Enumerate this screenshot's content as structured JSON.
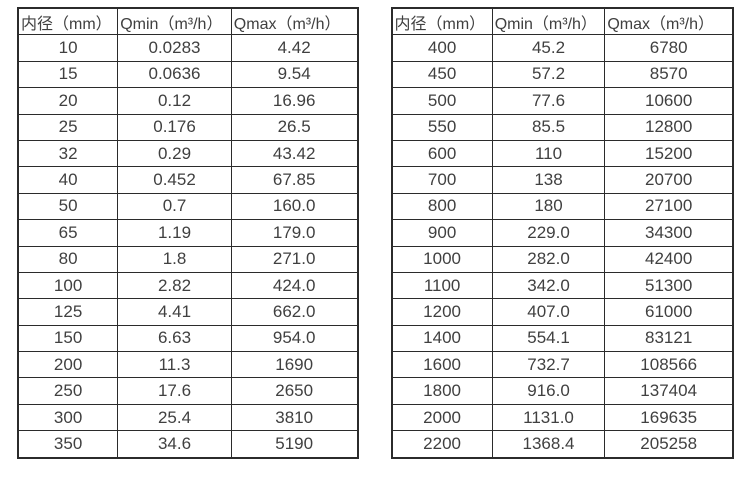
{
  "colors": {
    "background": "#ffffff",
    "text": "#404040",
    "border": "#2b2b2b"
  },
  "left_table": {
    "headers": [
      "内径（mm）",
      "Qmin（m³/h）",
      "Qmax（m³/h）"
    ],
    "rows": [
      [
        "10",
        "0.0283",
        "4.42"
      ],
      [
        "15",
        "0.0636",
        "9.54"
      ],
      [
        "20",
        "0.12",
        "16.96"
      ],
      [
        "25",
        "0.176",
        "26.5"
      ],
      [
        "32",
        "0.29",
        "43.42"
      ],
      [
        "40",
        "0.452",
        "67.85"
      ],
      [
        "50",
        "0.7",
        "160.0"
      ],
      [
        "65",
        "1.19",
        "179.0"
      ],
      [
        "80",
        "1.8",
        "271.0"
      ],
      [
        "100",
        "2.82",
        "424.0"
      ],
      [
        "125",
        "4.41",
        "662.0"
      ],
      [
        "150",
        "6.63",
        "954.0"
      ],
      [
        "200",
        "11.3",
        "1690"
      ],
      [
        "250",
        "17.6",
        "2650"
      ],
      [
        "300",
        "25.4",
        "3810"
      ],
      [
        "350",
        "34.6",
        "5190"
      ]
    ]
  },
  "right_table": {
    "headers": [
      "内径（mm）",
      "Qmin（m³/h）",
      "Qmax（m³/h）"
    ],
    "rows": [
      [
        "400",
        "45.2",
        "6780"
      ],
      [
        "450",
        "57.2",
        "8570"
      ],
      [
        "500",
        "77.6",
        "10600"
      ],
      [
        "550",
        "85.5",
        "12800"
      ],
      [
        "600",
        "110",
        "15200"
      ],
      [
        "700",
        "138",
        "20700"
      ],
      [
        "800",
        "180",
        "27100"
      ],
      [
        "900",
        "229.0",
        "34300"
      ],
      [
        "1000",
        "282.0",
        "42400"
      ],
      [
        "1100",
        "342.0",
        "51300"
      ],
      [
        "1200",
        "407.0",
        "61000"
      ],
      [
        "1400",
        "554.1",
        "83121"
      ],
      [
        "1600",
        "732.7",
        "108566"
      ],
      [
        "1800",
        "916.0",
        "137404"
      ],
      [
        "2000",
        "1131.0",
        "169635"
      ],
      [
        "2200",
        "1368.4",
        "205258"
      ]
    ]
  }
}
